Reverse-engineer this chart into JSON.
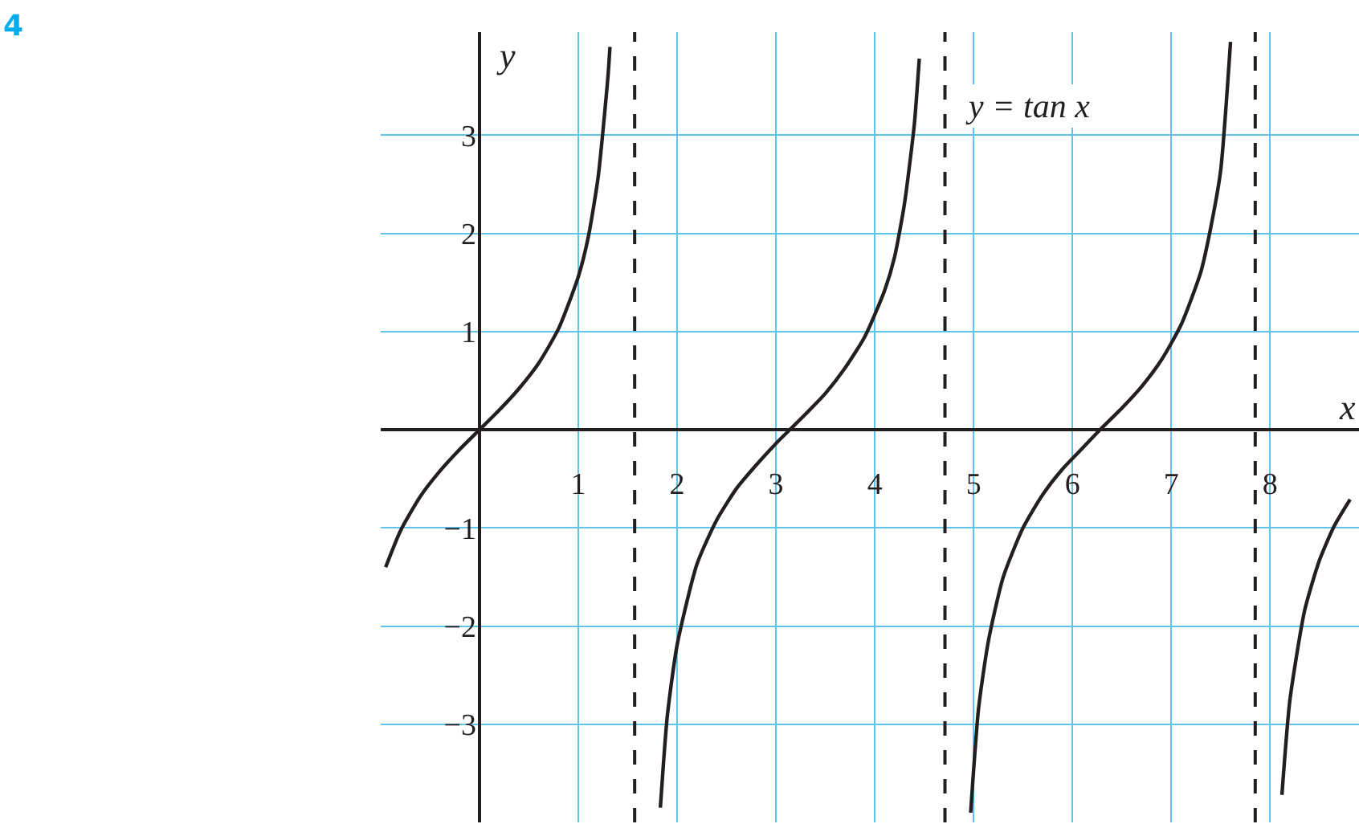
{
  "chart_data": {
    "type": "line",
    "xlabel": "x",
    "ylabel": "y",
    "annotations": [
      "4",
      "y = tan x"
    ],
    "series": [
      {
        "color": "#231f20",
        "x": [
          -0.95,
          -0.8,
          -0.6,
          -0.4,
          -0.2,
          0,
          0.2,
          0.4,
          0.6,
          0.8,
          1.0,
          1.1,
          1.2,
          1.3,
          1.32,
          null,
          1.83,
          1.9,
          2.0,
          2.2,
          2.4,
          2.6,
          2.8,
          3.0,
          3.14,
          3.3,
          3.5,
          3.7,
          3.9,
          4.1,
          4.2,
          4.3,
          4.4,
          4.45,
          null,
          4.97,
          5.05,
          5.15,
          5.3,
          5.5,
          5.7,
          5.9,
          6.1,
          6.28,
          6.5,
          6.7,
          6.9,
          7.1,
          7.3,
          7.4,
          7.5,
          7.6,
          null,
          8.12,
          8.2,
          8.35,
          8.5,
          8.65,
          8.81
        ],
        "values": [
          -1.4,
          -1.03,
          -0.68,
          -0.42,
          -0.2,
          0,
          0.2,
          0.42,
          0.68,
          1.03,
          1.56,
          1.96,
          2.57,
          3.6,
          3.9,
          null,
          -3.85,
          -2.92,
          -2.19,
          -1.37,
          -0.92,
          -0.6,
          -0.36,
          -0.14,
          0,
          0.16,
          0.37,
          0.63,
          0.95,
          1.42,
          1.76,
          2.3,
          3.11,
          3.78,
          null,
          -3.9,
          -2.84,
          -2.15,
          -1.5,
          -1.0,
          -0.66,
          -0.4,
          -0.19,
          0,
          0.22,
          0.44,
          0.71,
          1.07,
          1.61,
          2.06,
          2.64,
          3.95,
          null,
          -3.72,
          -2.76,
          -1.84,
          -1.33,
          -0.98,
          -0.71
        ]
      }
    ],
    "xlim": [
      -1.0,
      8.9
    ],
    "ylim": [
      -4.0,
      4.05
    ],
    "xticks": [
      1,
      2,
      3,
      4,
      5,
      6,
      7,
      8
    ],
    "yticks": [
      {
        "value": -3,
        "label": "−3"
      },
      {
        "value": -2,
        "label": "−2"
      },
      {
        "value": -1,
        "label": "−1"
      },
      1,
      2,
      3
    ],
    "ref_lines": [
      {
        "axis": "x",
        "value": 1.57,
        "color": "#231f20",
        "line_style": "dashed"
      },
      {
        "axis": "x",
        "value": 4.71,
        "color": "#231f20",
        "line_style": "dashed"
      },
      {
        "axis": "x",
        "value": 7.85,
        "color": "#231f20",
        "line_style": "dashed"
      }
    ],
    "grid": true,
    "marker": "none",
    "line_style": "solid"
  }
}
